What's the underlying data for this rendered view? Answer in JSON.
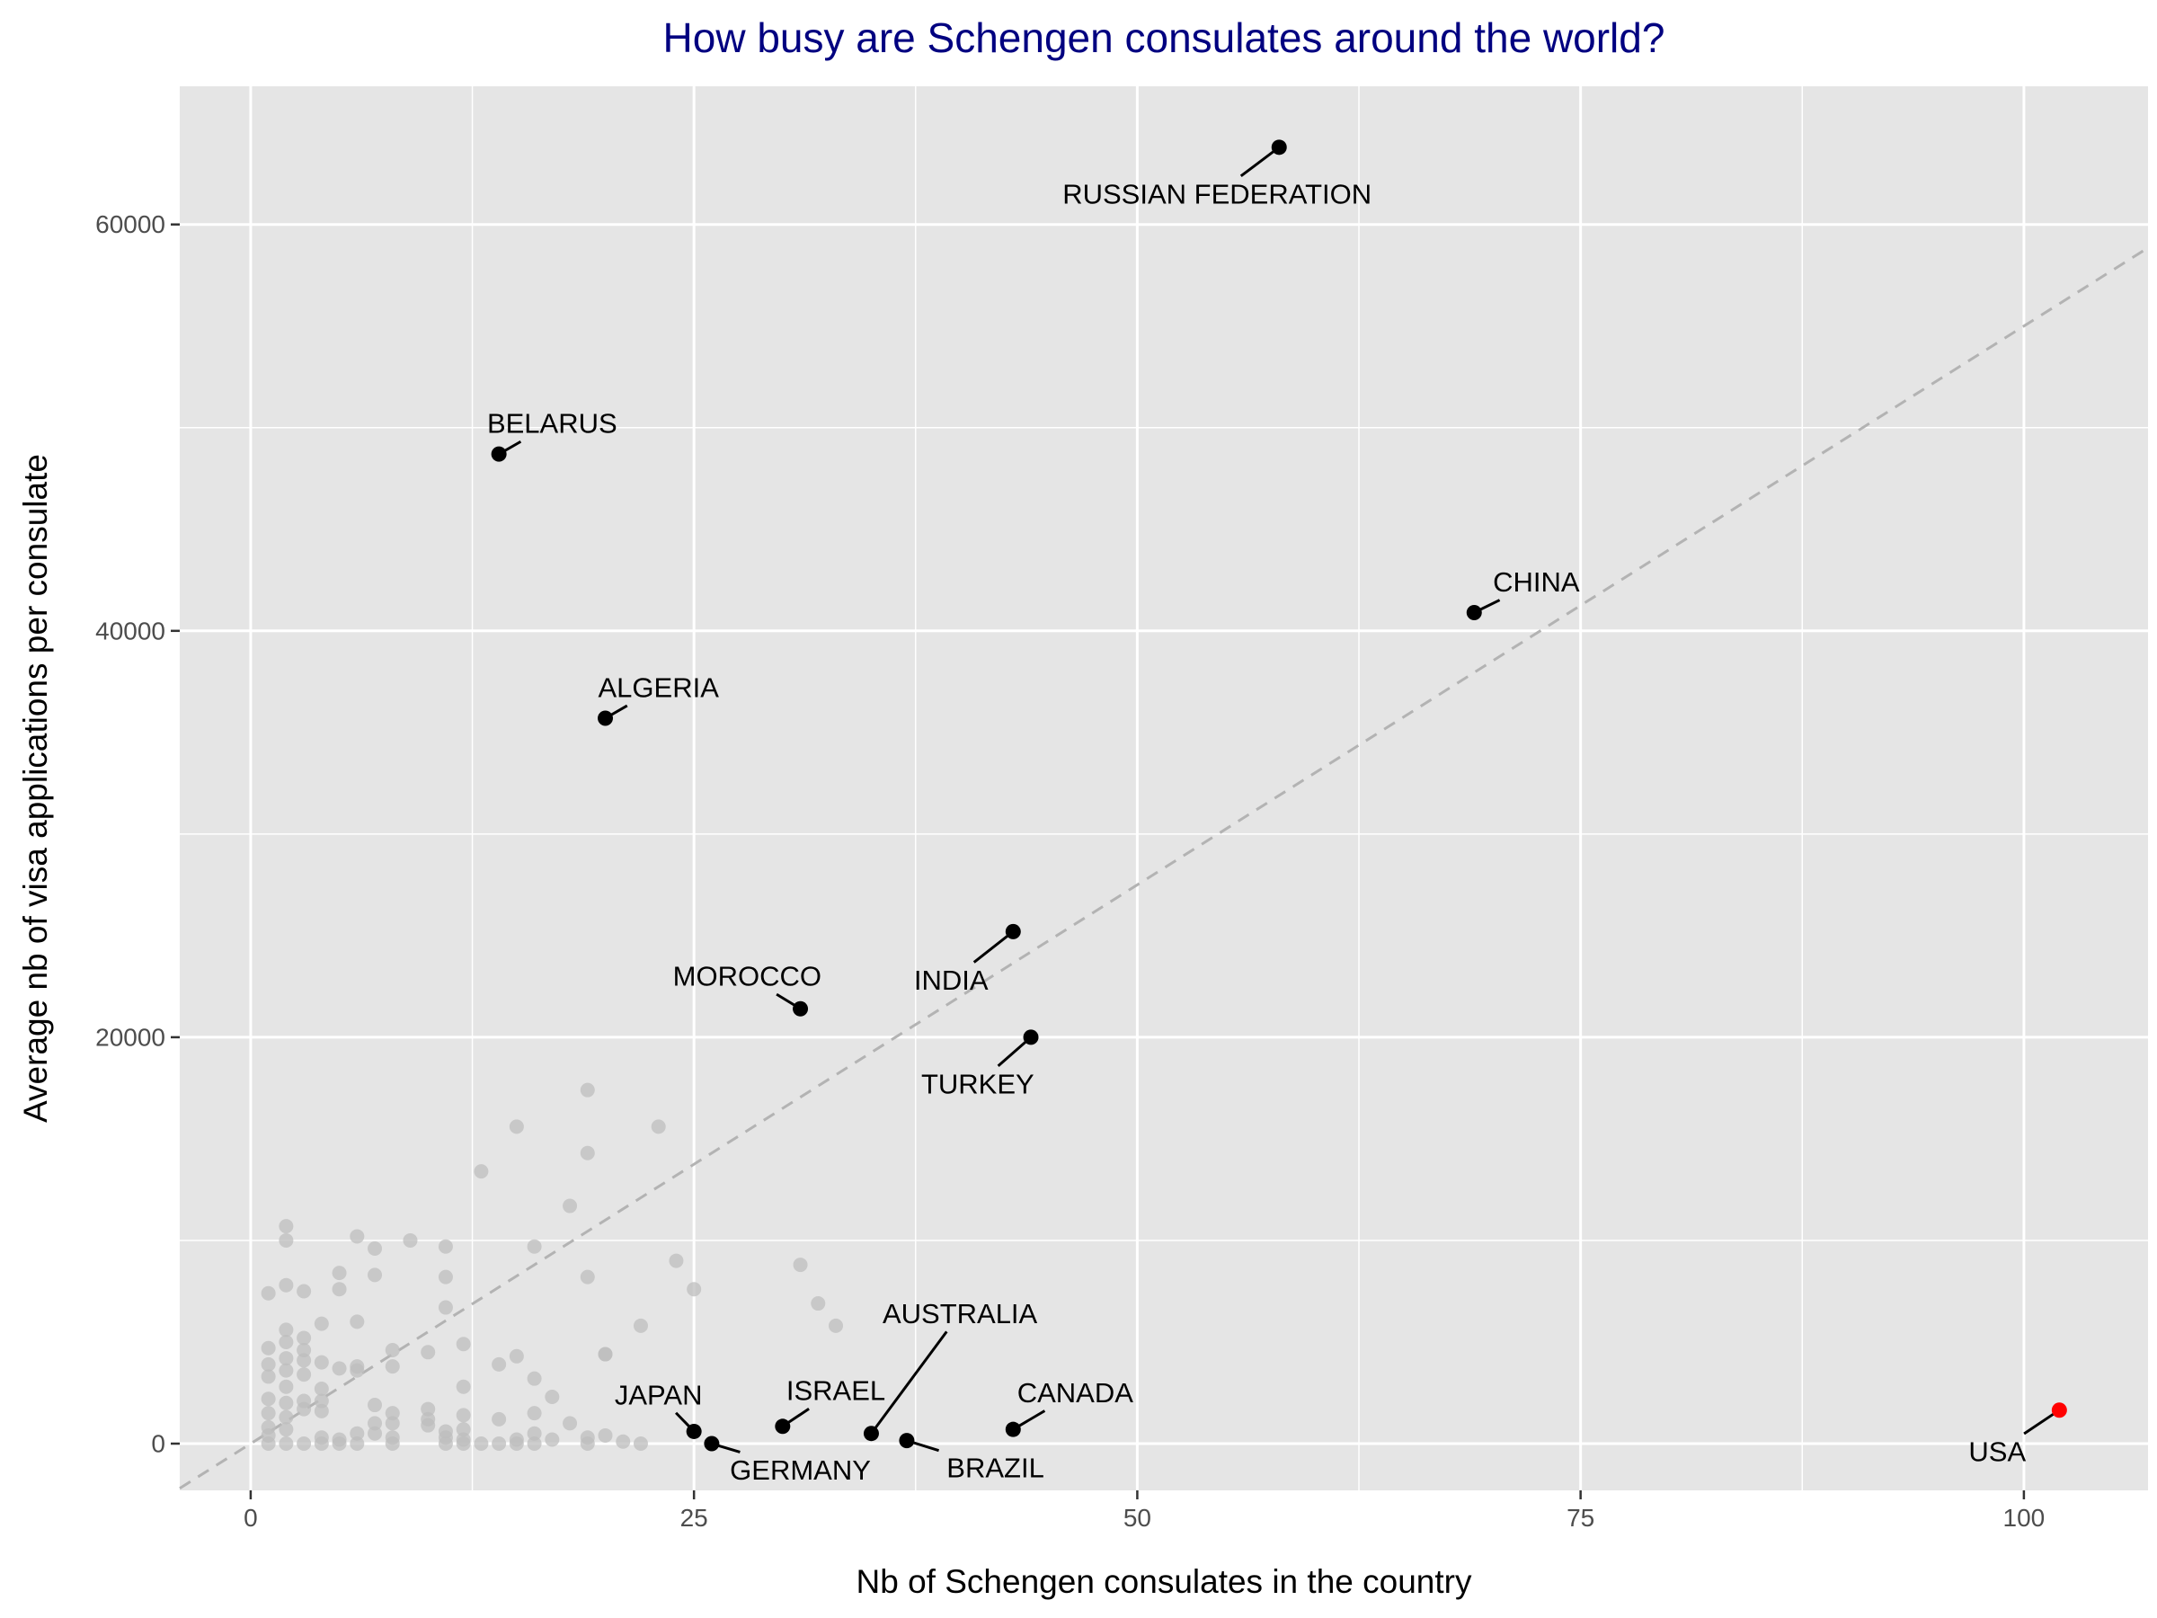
{
  "chart_data": {
    "type": "scatter",
    "title": "How busy are Schengen consulates around the world?",
    "xlabel": "Nb of Schengen consulates in the country",
    "ylabel": "Average nb of visa applications per consulate",
    "xlim": [
      -4,
      107
    ],
    "ylim": [
      -2300,
      66800
    ],
    "x_ticks": [
      0,
      25,
      50,
      75,
      100
    ],
    "y_ticks": [
      0,
      20000,
      40000,
      60000
    ],
    "grid": true,
    "reference_line": {
      "slope": 550,
      "intercept": 0,
      "style": "dashed",
      "color": "#b3b3b3"
    },
    "colors": {
      "panel": "#e5e5e5",
      "grid": "#ffffff",
      "background_points": "#bdbdbd",
      "highlight_points": "#000000",
      "usa": "#ff0000",
      "title": "#000080"
    },
    "labeled_points": [
      {
        "label": "RUSSIAN FEDERATION",
        "x": 58,
        "y": 63800,
        "color": "#000000",
        "lx": 54.5,
        "ly": 61500
      },
      {
        "label": "BELARUS",
        "x": 14,
        "y": 48700,
        "color": "#000000",
        "lx": 17,
        "ly": 50200
      },
      {
        "label": "CHINA",
        "x": 69,
        "y": 40900,
        "color": "#000000",
        "lx": 72.5,
        "ly": 42400
      },
      {
        "label": "ALGERIA",
        "x": 20,
        "y": 35700,
        "color": "#000000",
        "lx": 23,
        "ly": 37200
      },
      {
        "label": "MOROCCO",
        "x": 31,
        "y": 21400,
        "color": "#000000",
        "lx": 28,
        "ly": 23000
      },
      {
        "label": "INDIA",
        "x": 43,
        "y": 25200,
        "color": "#000000",
        "lx": 39.5,
        "ly": 22800
      },
      {
        "label": "TURKEY",
        "x": 44,
        "y": 20000,
        "color": "#000000",
        "lx": 41,
        "ly": 17700
      },
      {
        "label": "AUSTRALIA",
        "x": 35,
        "y": 500,
        "color": "#000000",
        "lx": 40,
        "ly": 6400
      },
      {
        "label": "JAPAN",
        "x": 25,
        "y": 600,
        "color": "#000000",
        "lx": 23,
        "ly": 2400
      },
      {
        "label": "ISRAEL",
        "x": 30,
        "y": 850,
        "color": "#000000",
        "lx": 33,
        "ly": 2600
      },
      {
        "label": "GERMANY",
        "x": 26,
        "y": 0,
        "color": "#000000",
        "lx": 31,
        "ly": -1300
      },
      {
        "label": "BRAZIL",
        "x": 37,
        "y": 150,
        "color": "#000000",
        "lx": 42,
        "ly": -1200
      },
      {
        "label": "CANADA",
        "x": 43,
        "y": 700,
        "color": "#000000",
        "lx": 46.5,
        "ly": 2500
      },
      {
        "label": "USA",
        "x": 102,
        "y": 1650,
        "color": "#ff0000",
        "lx": 98.5,
        "ly": -400
      }
    ],
    "background_points": [
      [
        1,
        7400
      ],
      [
        2,
        10700
      ],
      [
        2,
        10000
      ],
      [
        2,
        7800
      ],
      [
        3,
        7500
      ],
      [
        4,
        5900
      ],
      [
        5,
        8400
      ],
      [
        5,
        7600
      ],
      [
        6,
        10200
      ],
      [
        6,
        6000
      ],
      [
        7,
        9600
      ],
      [
        7,
        8300
      ],
      [
        9,
        10000
      ],
      [
        11,
        9700
      ],
      [
        11,
        8200
      ],
      [
        11,
        6700
      ],
      [
        13,
        13400
      ],
      [
        15,
        15600
      ],
      [
        16,
        9700
      ],
      [
        18,
        11700
      ],
      [
        19,
        17400
      ],
      [
        19,
        14300
      ],
      [
        19,
        8200
      ],
      [
        20,
        4400
      ],
      [
        22,
        5800
      ],
      [
        23,
        15600
      ],
      [
        24,
        9000
      ],
      [
        25,
        7600
      ],
      [
        31,
        8800
      ],
      [
        32,
        6900
      ],
      [
        33,
        5800
      ],
      [
        1,
        4700
      ],
      [
        1,
        3900
      ],
      [
        1,
        3300
      ],
      [
        1,
        2200
      ],
      [
        1,
        1500
      ],
      [
        1,
        800
      ],
      [
        1,
        400
      ],
      [
        1,
        0
      ],
      [
        2,
        5600
      ],
      [
        2,
        5000
      ],
      [
        2,
        4200
      ],
      [
        2,
        3600
      ],
      [
        2,
        2800
      ],
      [
        2,
        2000
      ],
      [
        2,
        1300
      ],
      [
        2,
        700
      ],
      [
        2,
        0
      ],
      [
        3,
        5200
      ],
      [
        3,
        4600
      ],
      [
        3,
        4100
      ],
      [
        3,
        3400
      ],
      [
        3,
        2100
      ],
      [
        3,
        1700
      ],
      [
        3,
        0
      ],
      [
        4,
        4000
      ],
      [
        4,
        2700
      ],
      [
        4,
        2100
      ],
      [
        4,
        1600
      ],
      [
        4,
        300
      ],
      [
        4,
        0
      ],
      [
        5,
        3700
      ],
      [
        5,
        200
      ],
      [
        5,
        0
      ],
      [
        6,
        3800
      ],
      [
        6,
        3600
      ],
      [
        6,
        500
      ],
      [
        6,
        0
      ],
      [
        7,
        1900
      ],
      [
        7,
        1000
      ],
      [
        7,
        500
      ],
      [
        8,
        4600
      ],
      [
        8,
        3800
      ],
      [
        8,
        1500
      ],
      [
        8,
        1000
      ],
      [
        8,
        300
      ],
      [
        8,
        0
      ],
      [
        10,
        4500
      ],
      [
        10,
        1700
      ],
      [
        10,
        1200
      ],
      [
        10,
        900
      ],
      [
        11,
        600
      ],
      [
        11,
        300
      ],
      [
        11,
        0
      ],
      [
        12,
        4900
      ],
      [
        12,
        2800
      ],
      [
        12,
        1400
      ],
      [
        12,
        700
      ],
      [
        12,
        200
      ],
      [
        12,
        0
      ],
      [
        13,
        0
      ],
      [
        14,
        3900
      ],
      [
        14,
        1200
      ],
      [
        14,
        0
      ],
      [
        15,
        4300
      ],
      [
        15,
        200
      ],
      [
        15,
        0
      ],
      [
        16,
        3200
      ],
      [
        16,
        1500
      ],
      [
        16,
        500
      ],
      [
        16,
        0
      ],
      [
        17,
        2300
      ],
      [
        17,
        200
      ],
      [
        18,
        1000
      ],
      [
        19,
        300
      ],
      [
        19,
        0
      ],
      [
        20,
        4400
      ],
      [
        20,
        400
      ],
      [
        21,
        100
      ],
      [
        22,
        0
      ]
    ]
  }
}
